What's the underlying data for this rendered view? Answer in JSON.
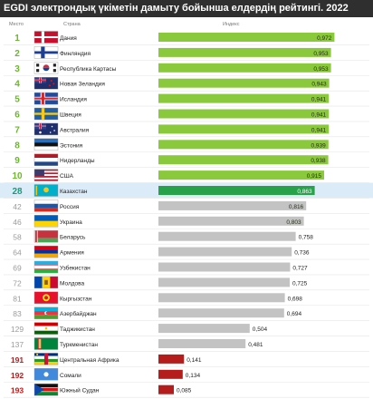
{
  "chart_data": {
    "type": "bar",
    "title": "EGDI электрондық үкіметін дамыту бойынша елдердің рейтингі. 2022",
    "column_headers": {
      "rank": "Место",
      "country": "Страна",
      "index": "Индекс"
    },
    "xlim": [
      0,
      1
    ],
    "grid": false,
    "rows": [
      {
        "rank": "1",
        "country": "Дания",
        "value": 0.972,
        "label": "0,972",
        "flag": "denmark"
      },
      {
        "rank": "2",
        "country": "Финляндия",
        "value": 0.953,
        "label": "0,953",
        "flag": "finland"
      },
      {
        "rank": "3",
        "country": "Республика Картасы",
        "value": 0.953,
        "label": "0,953",
        "flag": "south-korea"
      },
      {
        "rank": "4",
        "country": "Новая Зеландия",
        "value": 0.943,
        "label": "0,943",
        "flag": "new-zealand"
      },
      {
        "rank": "5",
        "country": "Исландия",
        "value": 0.941,
        "label": "0,941",
        "flag": "iceland"
      },
      {
        "rank": "6",
        "country": "Швеция",
        "value": 0.941,
        "label": "0,941",
        "flag": "sweden"
      },
      {
        "rank": "7",
        "country": "Австралия",
        "value": 0.941,
        "label": "0,941",
        "flag": "australia"
      },
      {
        "rank": "8",
        "country": "Эстония",
        "value": 0.939,
        "label": "0,939",
        "flag": "estonia"
      },
      {
        "rank": "9",
        "country": "Нидерланды",
        "value": 0.938,
        "label": "0,938",
        "flag": "netherlands"
      },
      {
        "rank": "10",
        "country": "США",
        "value": 0.915,
        "label": "0,915",
        "flag": "usa"
      },
      {
        "rank": "28",
        "country": "Казахстан",
        "value": 0.863,
        "label": "0,863",
        "flag": "kazakhstan",
        "highlight": true
      },
      {
        "rank": "42",
        "country": "Россия",
        "value": 0.816,
        "label": "0,816",
        "flag": "russia"
      },
      {
        "rank": "46",
        "country": "Украина",
        "value": 0.803,
        "label": "0,803",
        "flag": "ukraine"
      },
      {
        "rank": "58",
        "country": "Беларусь",
        "value": 0.758,
        "label": "0,758",
        "flag": "belarus"
      },
      {
        "rank": "64",
        "country": "Армения",
        "value": 0.736,
        "label": "0,736",
        "flag": "armenia"
      },
      {
        "rank": "69",
        "country": "Узбекистан",
        "value": 0.727,
        "label": "0,727",
        "flag": "uzbekistan"
      },
      {
        "rank": "72",
        "country": "Молдова",
        "value": 0.725,
        "label": "0,725",
        "flag": "moldova"
      },
      {
        "rank": "81",
        "country": "Кыргызстан",
        "value": 0.698,
        "label": "0,698",
        "flag": "kyrgyzstan"
      },
      {
        "rank": "83",
        "country": "Азербайджан",
        "value": 0.694,
        "label": "0,694",
        "flag": "azerbaijan"
      },
      {
        "rank": "129",
        "country": "Таджикистан",
        "value": 0.504,
        "label": "0,504",
        "flag": "tajikistan"
      },
      {
        "rank": "137",
        "country": "Туркменистан",
        "value": 0.481,
        "label": "0,481",
        "flag": "turkmenistan"
      },
      {
        "rank": "191",
        "country": "Центральная Африка",
        "value": 0.141,
        "label": "0,141",
        "flag": "car"
      },
      {
        "rank": "192",
        "country": "Сомали",
        "value": 0.134,
        "label": "0,134",
        "flag": "somalia"
      },
      {
        "rank": "193",
        "country": "Южный Судан",
        "value": 0.085,
        "label": "0,085",
        "flag": "south-sudan"
      }
    ]
  },
  "colors": {
    "title_bg": "#2f2f2f",
    "top_bar": "#8bc93c",
    "top_rank": "#6cb72d",
    "kaz_bar": "#27a14a",
    "kaz_rank": "#1a9a7a",
    "kaz_row_bg": "#dcebf8",
    "mid_bar": "#c3c3c3",
    "mid_rank": "#9b9b9b",
    "low_bar": "#b51c1c",
    "low_rank": "#b51c1c"
  }
}
